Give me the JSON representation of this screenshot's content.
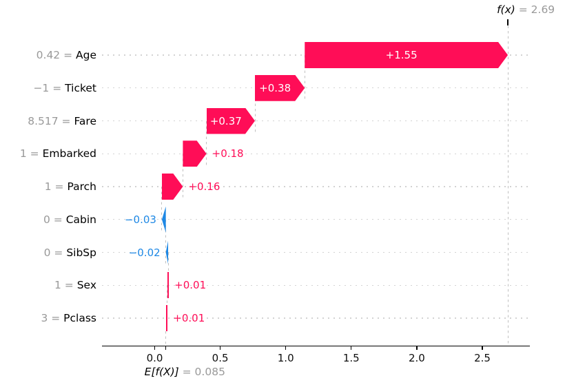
{
  "chart_data": {
    "type": "bar",
    "variant": "shap-waterfall",
    "title": "",
    "xlabel": "",
    "ylabel": "",
    "base_value": 0.085,
    "fx_value": 2.69,
    "fx_annotation": {
      "math": "f(x)",
      "rest": " = 2.69"
    },
    "base_annotation": {
      "math": "E[f(X)]",
      "rest": " = 0.085"
    },
    "separator": " = ",
    "x_ticks": [
      {
        "value": 0.0,
        "label": "0.0"
      },
      {
        "value": 0.5,
        "label": "0.5"
      },
      {
        "value": 1.0,
        "label": "1.0"
      },
      {
        "value": 1.5,
        "label": "1.5"
      },
      {
        "value": 2.0,
        "label": "2.0"
      },
      {
        "value": 2.5,
        "label": "2.5"
      }
    ],
    "xlim": [
      -0.41,
      2.87
    ],
    "grid": "horizontal-dotted",
    "legend": null,
    "rows": [
      {
        "feature": "Age",
        "feature_value": "0.42",
        "shap": 1.55,
        "bar_label": "+1.55"
      },
      {
        "feature": "Ticket",
        "feature_value": "−1",
        "shap": 0.38,
        "bar_label": "+0.38"
      },
      {
        "feature": "Fare",
        "feature_value": "8.517",
        "shap": 0.37,
        "bar_label": "+0.37"
      },
      {
        "feature": "Embarked",
        "feature_value": "1",
        "shap": 0.18,
        "bar_label": "+0.18"
      },
      {
        "feature": "Parch",
        "feature_value": "1",
        "shap": 0.16,
        "bar_label": "+0.16"
      },
      {
        "feature": "Cabin",
        "feature_value": "0",
        "shap": -0.03,
        "bar_label": "−0.03"
      },
      {
        "feature": "SibSp",
        "feature_value": "0",
        "shap": -0.02,
        "bar_label": "−0.02"
      },
      {
        "feature": "Sex",
        "feature_value": "1",
        "shap": 0.01,
        "bar_label": "+0.01"
      },
      {
        "feature": "Pclass",
        "feature_value": "3",
        "shap": 0.01,
        "bar_label": "+0.01"
      }
    ],
    "colors": {
      "positive": "#ff0d57",
      "negative": "#1e88e5",
      "muted_text": "#999999",
      "axis": "#000000",
      "gridline": "#d2d2d2",
      "dashed_line": "#c0c0c0",
      "bar_label_inside": "#ffffff",
      "background": "#ffffff"
    }
  }
}
